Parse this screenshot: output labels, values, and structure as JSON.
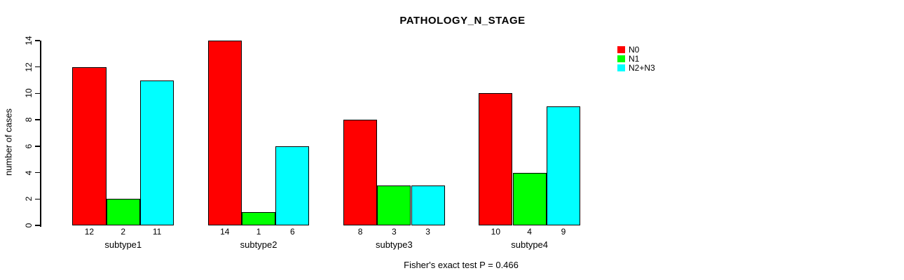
{
  "chart_data": {
    "type": "bar",
    "title": "PATHOLOGY_N_STAGE",
    "ylabel": "number of cases",
    "ylim": [
      0,
      14
    ],
    "yticks": [
      0,
      2,
      4,
      6,
      8,
      10,
      12,
      14
    ],
    "grid": false,
    "categories": [
      "subtype1",
      "subtype2",
      "subtype3",
      "subtype4"
    ],
    "series": [
      {
        "name": "N0",
        "color": "#FF0000",
        "values": [
          12,
          14,
          8,
          10
        ]
      },
      {
        "name": "N1",
        "color": "#00FF00",
        "values": [
          2,
          1,
          3,
          4
        ]
      },
      {
        "name": "N2+N3",
        "color": "#00FFFF",
        "values": [
          11,
          6,
          3,
          9
        ]
      }
    ],
    "bar_value_labels": [
      [
        "12",
        "2",
        "11"
      ],
      [
        "14",
        "1",
        "6"
      ],
      [
        "8",
        "3",
        "3"
      ],
      [
        "10",
        "4",
        "9"
      ]
    ],
    "legend_position": "top-right",
    "annotation": "Fisher's exact test P = 0.466"
  },
  "colors": {
    "background": "#FFFFFF",
    "axis": "#000000",
    "text": "#000000"
  }
}
